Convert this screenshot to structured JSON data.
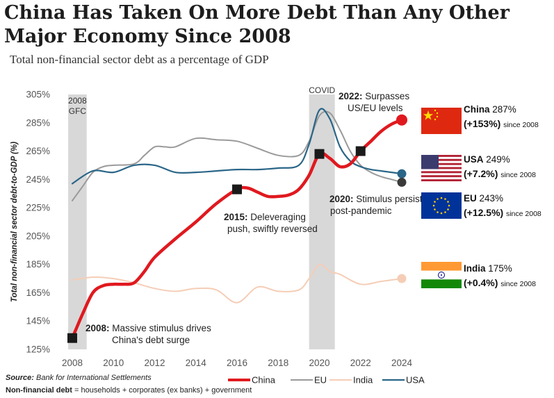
{
  "title": "China Has Taken On More Debt Than Any Other Major Economy Since 2008",
  "subtitle": "Total non-financial sector debt as a percentage of GDP",
  "colors": {
    "china": "#e0191f",
    "eu": "#9a9a9a",
    "india": "#f5cdb6",
    "usa": "#2a6688",
    "shade": "#d8d8d8",
    "marker": "#1a1a1a"
  },
  "chart_data": {
    "type": "line",
    "ylabel": "Total non-financial sector debt-to-GDP (%)",
    "xlabel": "",
    "xlim": [
      2007.7,
      2024.5
    ],
    "ylim": [
      125,
      305
    ],
    "x_ticks": [
      2008,
      2010,
      2012,
      2014,
      2016,
      2018,
      2020,
      2022,
      2024
    ],
    "y_ticks": [
      125,
      145,
      165,
      185,
      205,
      225,
      245,
      265,
      285,
      305
    ],
    "y_tick_labels": [
      "125%",
      "145%",
      "165%",
      "185%",
      "205%",
      "225%",
      "245%",
      "265%",
      "285%",
      "305%"
    ],
    "shaded_periods": [
      {
        "label": "2008\nGFC",
        "label_lines": [
          "2008",
          "GFC"
        ],
        "x0": 2007.8,
        "x1": 2008.7
      },
      {
        "label": "COVID",
        "label_lines": [
          "COVID"
        ],
        "x0": 2019.5,
        "x1": 2020.75
      }
    ],
    "series": [
      {
        "name": "China",
        "x": [
          2008,
          2008.5,
          2009,
          2009.5,
          2010,
          2010.5,
          2011,
          2011.5,
          2012,
          2013,
          2014,
          2015,
          2016,
          2016.5,
          2017,
          2017.5,
          2018,
          2018.5,
          2019,
          2019.5,
          2020,
          2020.5,
          2021,
          2021.5,
          2022,
          2022.5,
          2023,
          2023.5,
          2024
        ],
        "values": [
          133,
          150,
          165,
          170,
          171,
          171,
          172,
          180,
          190,
          203,
          215,
          228,
          238,
          239,
          236,
          233,
          233,
          234,
          238,
          248,
          263,
          260,
          254,
          256,
          265,
          272,
          279,
          284,
          287
        ]
      },
      {
        "name": "EU",
        "x": [
          2008,
          2008.5,
          2009,
          2009.5,
          2010,
          2011,
          2011.5,
          2012,
          2012.5,
          2013,
          2014,
          2015,
          2016,
          2017,
          2018,
          2019,
          2019.5,
          2020,
          2020.5,
          2021,
          2021.5,
          2022,
          2022.5,
          2023,
          2023.5,
          2024
        ],
        "values": [
          230,
          240,
          250,
          254,
          255,
          256,
          262,
          268,
          268,
          268,
          274,
          273,
          272,
          267,
          262,
          262,
          272,
          290,
          292,
          280,
          265,
          255,
          250,
          247,
          245,
          243
        ]
      },
      {
        "name": "India",
        "x": [
          2008,
          2009,
          2010,
          2011,
          2012,
          2013,
          2014,
          2015,
          2016,
          2017,
          2018,
          2019,
          2019.5,
          2020,
          2020.5,
          2021,
          2022,
          2023,
          2024
        ],
        "values": [
          174,
          176,
          175,
          172,
          168,
          166,
          168,
          167,
          158,
          169,
          166,
          167,
          175,
          185,
          180,
          178,
          171,
          173,
          175
        ]
      },
      {
        "name": "USA",
        "x": [
          2008,
          2009,
          2010,
          2011,
          2012,
          2013,
          2014,
          2015,
          2016,
          2017,
          2018,
          2019,
          2019.5,
          2020,
          2020.5,
          2021,
          2021.5,
          2022,
          2022.5,
          2023,
          2023.5,
          2024
        ],
        "values": [
          242,
          251,
          250,
          255,
          255,
          250,
          250,
          251,
          252,
          252,
          253,
          255,
          270,
          294,
          288,
          268,
          258,
          254,
          252,
          251,
          250,
          249
        ]
      }
    ],
    "markers": [
      {
        "x": 2008,
        "y": 133
      },
      {
        "x": 2016,
        "y": 238
      },
      {
        "x": 2020,
        "y": 263
      },
      {
        "x": 2022,
        "y": 265
      }
    ],
    "endpoints": [
      {
        "series": "China",
        "x": 2024,
        "y": 287
      },
      {
        "series": "USA",
        "x": 2024,
        "y": 249
      },
      {
        "series": "EU",
        "x": 2024,
        "y": 243
      },
      {
        "series": "India",
        "x": 2024,
        "y": 175
      }
    ]
  },
  "annotations": {
    "a2008": {
      "bold": "2008:",
      "text": " Massive stimulus drives",
      "line2": "China's debt surge"
    },
    "a2015": {
      "bold": "2015:",
      "text": " Deleveraging",
      "line2": "push, swiftly reversed"
    },
    "a2020": {
      "bold": "2020:",
      "text": " Stimulus persists",
      "line2": "post-pandemic"
    },
    "a2022": {
      "bold": "2022:",
      "text": " Surpasses",
      "line2": "US/EU levels"
    }
  },
  "countries": [
    {
      "name": "China",
      "value": "287%",
      "change": "(+153%)",
      "since": "since 2008"
    },
    {
      "name": "USA",
      "value": "249%",
      "change": "(+7.2%)",
      "since": "since 2008"
    },
    {
      "name": "EU",
      "value": "243%",
      "change": "(+12.5%)",
      "since": "since 2008"
    },
    {
      "name": "India",
      "value": "175%",
      "change": "(+0.4%)",
      "since": "since 2008"
    }
  ],
  "legend": [
    "China",
    "EU",
    "India",
    "USA"
  ],
  "footer": {
    "source_label": "Source:",
    "source_text": " Bank for International Settlements",
    "def_label": "Non-financial debt",
    "def_text": " = households + corporates (ex banks) + government"
  }
}
